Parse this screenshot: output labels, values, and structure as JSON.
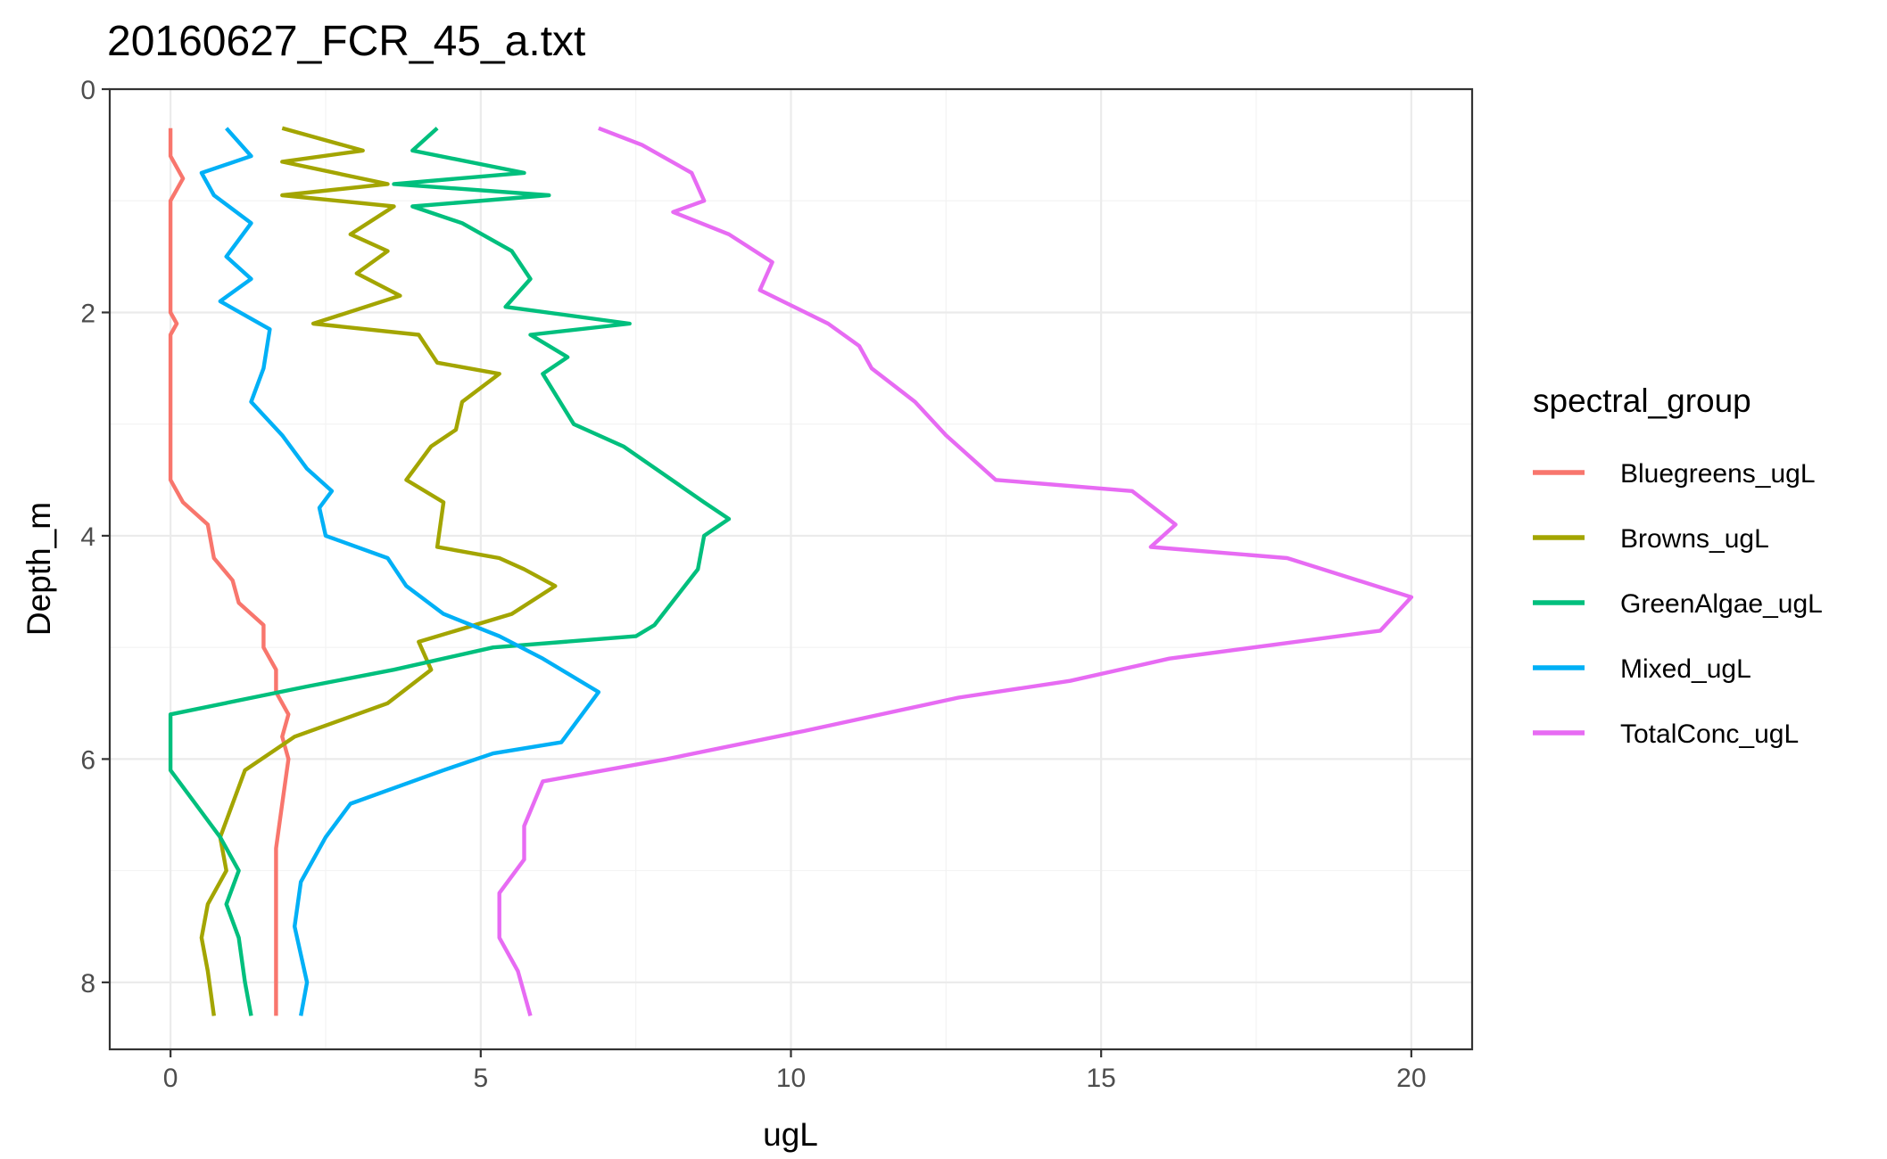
{
  "chart_data": {
    "type": "line",
    "title": "20160627_FCR_45_a.txt",
    "xlabel": "ugL",
    "ylabel": "Depth_m",
    "xlim": [
      -0.98,
      20.98
    ],
    "ylim": [
      0,
      8.6
    ],
    "y_reversed": true,
    "x_ticks": [
      0,
      5,
      10,
      15,
      20
    ],
    "y_ticks": [
      0,
      2,
      4,
      6,
      8
    ],
    "grid": true,
    "legend": {
      "title": "spectral_group",
      "position": "right"
    },
    "series": [
      {
        "name": "Bluegreens_ugL",
        "color": "#F8766D",
        "points": [
          [
            0.0,
            0.35
          ],
          [
            0.0,
            0.6
          ],
          [
            0.2,
            0.8
          ],
          [
            0.0,
            1.0
          ],
          [
            0.0,
            1.5
          ],
          [
            0.0,
            2.0
          ],
          [
            0.1,
            2.1
          ],
          [
            0.0,
            2.2
          ],
          [
            0.0,
            2.8
          ],
          [
            0.0,
            3.1
          ],
          [
            0.0,
            3.5
          ],
          [
            0.2,
            3.7
          ],
          [
            0.6,
            3.9
          ],
          [
            0.7,
            4.2
          ],
          [
            1.0,
            4.4
          ],
          [
            1.1,
            4.6
          ],
          [
            1.5,
            4.8
          ],
          [
            1.5,
            5.0
          ],
          [
            1.7,
            5.2
          ],
          [
            1.7,
            5.4
          ],
          [
            1.9,
            5.6
          ],
          [
            1.8,
            5.8
          ],
          [
            1.9,
            6.0
          ],
          [
            1.8,
            6.4
          ],
          [
            1.7,
            6.8
          ],
          [
            1.7,
            7.3
          ],
          [
            1.7,
            7.7
          ],
          [
            1.7,
            8.0
          ],
          [
            1.7,
            8.3
          ]
        ]
      },
      {
        "name": "Browns_ugL",
        "color": "#A3A500",
        "points": [
          [
            1.8,
            0.35
          ],
          [
            3.1,
            0.55
          ],
          [
            1.8,
            0.65
          ],
          [
            3.5,
            0.85
          ],
          [
            1.8,
            0.95
          ],
          [
            3.6,
            1.05
          ],
          [
            2.9,
            1.3
          ],
          [
            3.5,
            1.45
          ],
          [
            3.0,
            1.65
          ],
          [
            3.7,
            1.85
          ],
          [
            2.3,
            2.1
          ],
          [
            4.0,
            2.2
          ],
          [
            4.3,
            2.45
          ],
          [
            5.3,
            2.55
          ],
          [
            4.7,
            2.8
          ],
          [
            4.6,
            3.05
          ],
          [
            4.2,
            3.2
          ],
          [
            3.8,
            3.5
          ],
          [
            4.4,
            3.7
          ],
          [
            4.3,
            4.1
          ],
          [
            5.3,
            4.2
          ],
          [
            5.7,
            4.3
          ],
          [
            6.2,
            4.45
          ],
          [
            5.5,
            4.7
          ],
          [
            4.0,
            4.95
          ],
          [
            4.2,
            5.2
          ],
          [
            3.5,
            5.5
          ],
          [
            2.0,
            5.8
          ],
          [
            1.2,
            6.1
          ],
          [
            1.0,
            6.4
          ],
          [
            0.8,
            6.7
          ],
          [
            0.9,
            7.0
          ],
          [
            0.6,
            7.3
          ],
          [
            0.5,
            7.6
          ],
          [
            0.6,
            7.9
          ],
          [
            0.7,
            8.3
          ]
        ]
      },
      {
        "name": "GreenAlgae_ugL",
        "color": "#00BF7D",
        "points": [
          [
            4.3,
            0.35
          ],
          [
            3.9,
            0.55
          ],
          [
            5.7,
            0.75
          ],
          [
            3.6,
            0.85
          ],
          [
            6.1,
            0.95
          ],
          [
            3.9,
            1.05
          ],
          [
            4.7,
            1.2
          ],
          [
            5.5,
            1.45
          ],
          [
            5.8,
            1.7
          ],
          [
            5.4,
            1.95
          ],
          [
            7.4,
            2.1
          ],
          [
            5.8,
            2.2
          ],
          [
            6.4,
            2.4
          ],
          [
            6.0,
            2.55
          ],
          [
            6.5,
            3.0
          ],
          [
            7.3,
            3.2
          ],
          [
            8.6,
            3.7
          ],
          [
            9.0,
            3.85
          ],
          [
            8.6,
            4.0
          ],
          [
            8.5,
            4.3
          ],
          [
            7.8,
            4.8
          ],
          [
            7.5,
            4.9
          ],
          [
            5.2,
            5.0
          ],
          [
            3.6,
            5.2
          ],
          [
            2.2,
            5.35
          ],
          [
            0.0,
            5.6
          ],
          [
            0.0,
            6.1
          ],
          [
            0.4,
            6.4
          ],
          [
            0.8,
            6.7
          ],
          [
            1.1,
            7.0
          ],
          [
            0.9,
            7.3
          ],
          [
            1.1,
            7.6
          ],
          [
            1.2,
            8.0
          ],
          [
            1.3,
            8.3
          ]
        ]
      },
      {
        "name": "Mixed_ugL",
        "color": "#00B0F6",
        "points": [
          [
            0.9,
            0.35
          ],
          [
            1.3,
            0.6
          ],
          [
            0.5,
            0.75
          ],
          [
            0.7,
            0.95
          ],
          [
            1.3,
            1.2
          ],
          [
            0.9,
            1.5
          ],
          [
            1.3,
            1.7
          ],
          [
            0.8,
            1.9
          ],
          [
            1.6,
            2.15
          ],
          [
            1.5,
            2.5
          ],
          [
            1.3,
            2.8
          ],
          [
            1.8,
            3.1
          ],
          [
            2.2,
            3.4
          ],
          [
            2.6,
            3.6
          ],
          [
            2.4,
            3.75
          ],
          [
            2.5,
            4.0
          ],
          [
            3.5,
            4.2
          ],
          [
            3.8,
            4.45
          ],
          [
            4.4,
            4.7
          ],
          [
            5.3,
            4.9
          ],
          [
            6.0,
            5.1
          ],
          [
            6.9,
            5.4
          ],
          [
            6.3,
            5.85
          ],
          [
            5.2,
            5.95
          ],
          [
            4.4,
            6.1
          ],
          [
            2.9,
            6.4
          ],
          [
            2.5,
            6.7
          ],
          [
            2.1,
            7.1
          ],
          [
            2.0,
            7.5
          ],
          [
            2.2,
            8.0
          ],
          [
            2.1,
            8.3
          ]
        ]
      },
      {
        "name": "TotalConc_ugL",
        "color": "#E76BF3",
        "points": [
          [
            6.9,
            0.35
          ],
          [
            7.6,
            0.5
          ],
          [
            8.4,
            0.75
          ],
          [
            8.6,
            1.0
          ],
          [
            8.1,
            1.1
          ],
          [
            9.0,
            1.3
          ],
          [
            9.7,
            1.55
          ],
          [
            9.5,
            1.8
          ],
          [
            10.6,
            2.1
          ],
          [
            11.1,
            2.3
          ],
          [
            11.3,
            2.5
          ],
          [
            12.0,
            2.8
          ],
          [
            12.5,
            3.1
          ],
          [
            13.3,
            3.5
          ],
          [
            15.5,
            3.6
          ],
          [
            16.2,
            3.9
          ],
          [
            15.8,
            4.1
          ],
          [
            18.0,
            4.2
          ],
          [
            20.0,
            4.55
          ],
          [
            19.5,
            4.85
          ],
          [
            16.1,
            5.1
          ],
          [
            14.5,
            5.3
          ],
          [
            12.7,
            5.45
          ],
          [
            10.2,
            5.75
          ],
          [
            8.0,
            6.0
          ],
          [
            6.0,
            6.2
          ],
          [
            5.7,
            6.6
          ],
          [
            5.7,
            6.9
          ],
          [
            5.3,
            7.2
          ],
          [
            5.3,
            7.6
          ],
          [
            5.6,
            7.9
          ],
          [
            5.8,
            8.3
          ]
        ]
      }
    ]
  }
}
